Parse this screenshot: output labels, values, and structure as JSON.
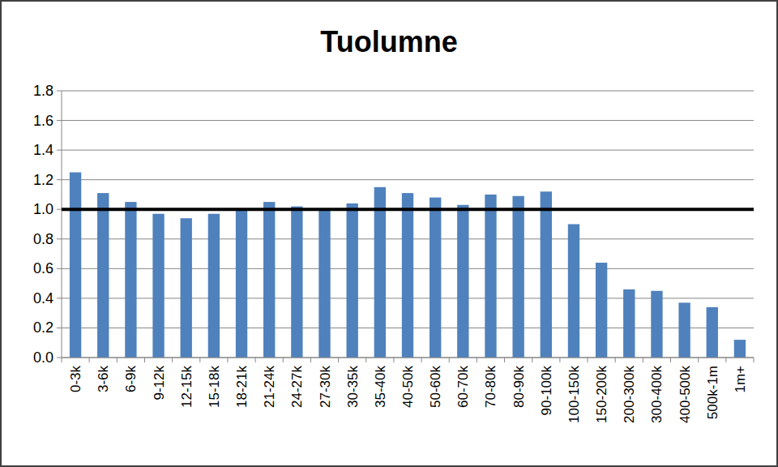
{
  "chart_data": {
    "type": "bar",
    "title": "Tuolumne",
    "categories": [
      "0-3k",
      "3-6k",
      "6-9k",
      "9-12k",
      "12-15k",
      "15-18k",
      "18-21k",
      "21-24k",
      "24-27k",
      "27-30k",
      "30-35k",
      "35-40k",
      "40-50k",
      "50-60k",
      "60-70k",
      "70-80k",
      "80-90k",
      "90-100k",
      "100-150k",
      "150-200k",
      "200-300k",
      "300-400k",
      "400-500k",
      "500k-1m",
      "1m+"
    ],
    "values": [
      1.25,
      1.11,
      1.05,
      0.97,
      0.94,
      0.97,
      1.0,
      1.05,
      1.02,
      1.0,
      1.04,
      1.15,
      1.11,
      1.08,
      1.03,
      1.1,
      1.09,
      1.12,
      0.9,
      0.64,
      0.46,
      0.45,
      0.37,
      0.34,
      0.12
    ],
    "color": "#4f81bd",
    "reference_line": 1.0,
    "ylim": [
      0,
      1.8
    ],
    "yticks": [
      {
        "value": 0,
        "label": "0.0"
      },
      {
        "value": 0.2,
        "label": "0.2"
      },
      {
        "value": 0.4,
        "label": "0.4"
      },
      {
        "value": 0.6,
        "label": "0.6"
      },
      {
        "value": 0.8,
        "label": "0.8"
      },
      {
        "value": 1.0,
        "label": "1.0"
      },
      {
        "value": 1.2,
        "label": "1.2"
      },
      {
        "value": 1.4,
        "label": "1.4"
      },
      {
        "value": 1.6,
        "label": "1.6"
      },
      {
        "value": 1.8,
        "label": "1.8"
      }
    ],
    "grid": true
  }
}
